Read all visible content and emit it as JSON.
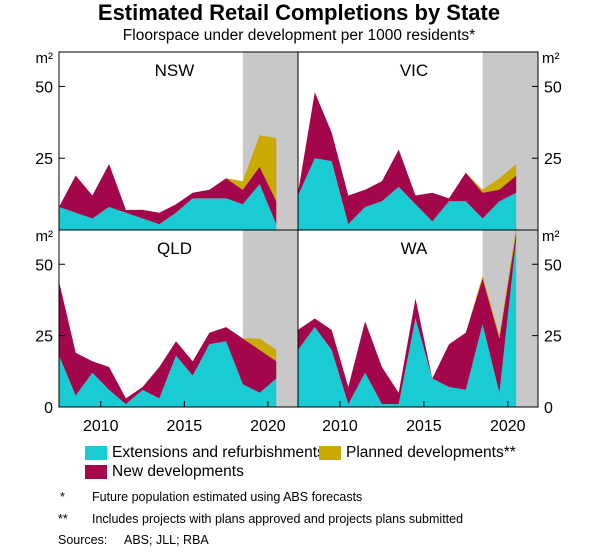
{
  "title": "Estimated Retail Completions by State",
  "subtitle": "Floorspace under development per 1000 residents*",
  "colors": {
    "extensions": "#19cbd2",
    "new": "#a3064a",
    "planned": "#c8aa00",
    "forecast_shade": "#c8c8c8",
    "frame": "#000000"
  },
  "chart_data": {
    "type": "area",
    "layout": "2x2 panels, stacked areas",
    "unit_label": "m²",
    "x_tick_labels": [
      "2010",
      "2015",
      "2020"
    ],
    "x_ticks": [
      2010,
      2015,
      2020
    ],
    "xlim": [
      2007.5,
      2021.8
    ],
    "x": [
      2007.5,
      2008.5,
      2009.5,
      2010.5,
      2011.5,
      2012.5,
      2013.5,
      2014.5,
      2015.5,
      2016.5,
      2017.5,
      2018.5,
      2019.5,
      2020.5,
      2021.5
    ],
    "shaded_region": [
      2018.5,
      2021.8
    ],
    "top_panels": {
      "ylim": [
        0,
        62
      ],
      "y_ticks": [
        25,
        50
      ],
      "y_tick_labels": [
        "25",
        "50"
      ]
    },
    "bottom_panels": {
      "ylim": [
        0,
        62
      ],
      "y_ticks": [
        0,
        25,
        50
      ],
      "y_tick_labels": [
        "0",
        "25",
        "50"
      ]
    },
    "series_order": [
      "extensions",
      "new",
      "planned"
    ],
    "panels": [
      {
        "name": "NSW",
        "position": "top-left",
        "extensions": [
          8,
          6,
          4,
          8,
          6,
          4,
          2,
          6,
          11,
          11,
          11,
          9,
          16,
          2
        ],
        "new": [
          0,
          13,
          8,
          15,
          1,
          3,
          4,
          3,
          2,
          3,
          7,
          5,
          6,
          8
        ],
        "planned": [
          0,
          0,
          0,
          0,
          0,
          0,
          0,
          0,
          0,
          0,
          0,
          3,
          11,
          22
        ]
      },
      {
        "name": "VIC",
        "position": "top-right",
        "extensions": [
          12,
          25,
          24,
          2,
          8,
          10,
          15,
          9,
          3,
          10,
          10,
          4,
          10,
          13
        ],
        "new": [
          1,
          23,
          10,
          10,
          6,
          7,
          13,
          3,
          10,
          1,
          10,
          9,
          4,
          6
        ],
        "planned": [
          0,
          0,
          0,
          0,
          0,
          0,
          0,
          0,
          0,
          0,
          0,
          1,
          4,
          4
        ]
      },
      {
        "name": "QLD",
        "position": "bottom-left",
        "extensions": [
          18,
          4,
          12,
          6,
          1,
          6,
          3,
          18,
          11,
          22,
          23,
          8,
          5,
          10
        ],
        "new": [
          26,
          15,
          4,
          8,
          2,
          1,
          11,
          5,
          5,
          4,
          5,
          16,
          15,
          6
        ],
        "planned": [
          0,
          0,
          0,
          0,
          0,
          0,
          0,
          0,
          0,
          0,
          0,
          0,
          4,
          4
        ]
      },
      {
        "name": "WA",
        "position": "bottom-right",
        "extensions": [
          20,
          28,
          20,
          1,
          12,
          1,
          1,
          31,
          10,
          7,
          6,
          29,
          5,
          59
        ],
        "new": [
          7,
          3,
          7,
          6,
          18,
          13,
          4,
          7,
          0,
          15,
          20,
          16,
          19,
          2
        ],
        "planned": [
          0,
          0,
          0,
          0,
          0,
          0,
          0,
          0,
          0,
          0,
          0,
          1,
          1,
          2
        ]
      }
    ]
  },
  "legend": {
    "extensions": "Extensions and refurbishments",
    "planned": "Planned developments**",
    "new": "New developments"
  },
  "notes": {
    "note1_marker": "*",
    "note1_text": "Future population estimated using ABS forecasts",
    "note2_marker": "**",
    "note2_text": "Includes projects with plans approved and projects plans submitted",
    "sources_label": "Sources:",
    "sources_text": "ABS; JLL; RBA"
  }
}
